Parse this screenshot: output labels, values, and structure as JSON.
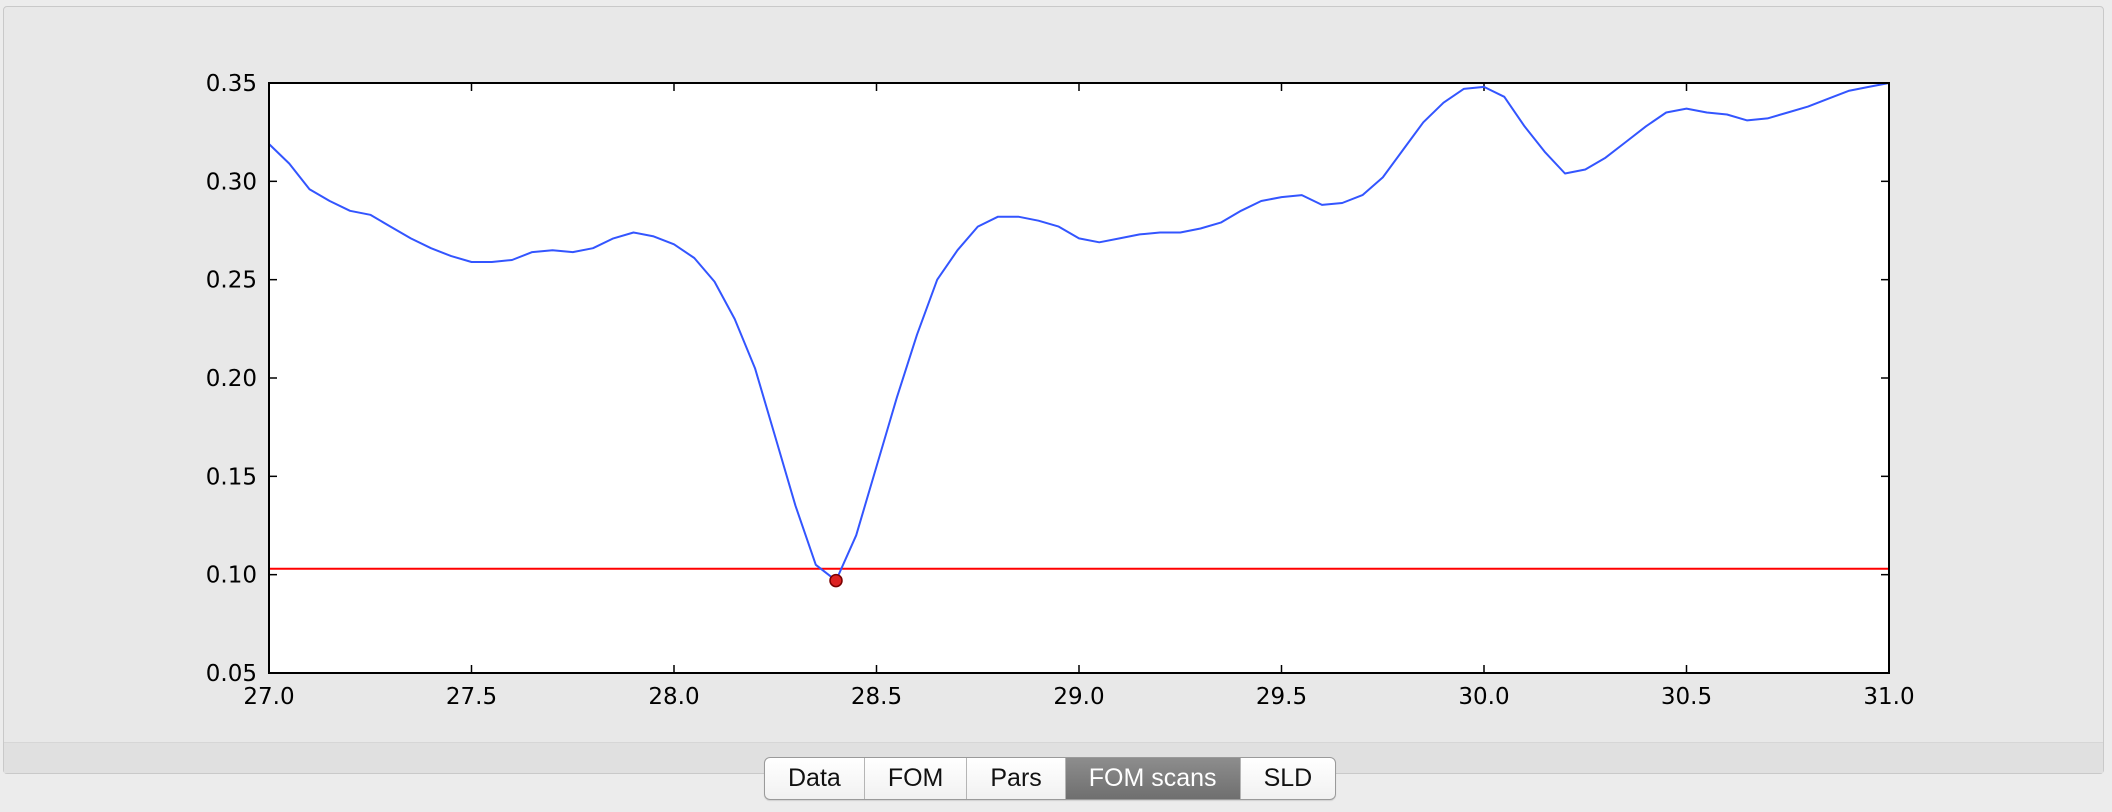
{
  "tabs": [
    {
      "label": "Data",
      "selected": false
    },
    {
      "label": "FOM",
      "selected": false
    },
    {
      "label": "Pars",
      "selected": false
    },
    {
      "label": "FOM scans",
      "selected": true
    },
    {
      "label": "SLD",
      "selected": false
    }
  ],
  "chart_data": {
    "type": "line",
    "title": "",
    "xlabel": "",
    "ylabel": "",
    "xlim": [
      27.0,
      31.0
    ],
    "ylim": [
      0.05,
      0.35
    ],
    "xticks": [
      "27.0",
      "27.5",
      "28.0",
      "28.5",
      "29.0",
      "29.5",
      "30.0",
      "30.5",
      "31.0"
    ],
    "yticks": [
      "0.05",
      "0.10",
      "0.15",
      "0.20",
      "0.25",
      "0.30",
      "0.35"
    ],
    "grid": false,
    "series": [
      {
        "color": "#3355ff",
        "x": [
          27.0,
          27.05,
          27.1,
          27.15,
          27.2,
          27.25,
          27.3,
          27.35,
          27.4,
          27.45,
          27.5,
          27.55,
          27.6,
          27.65,
          27.7,
          27.75,
          27.8,
          27.85,
          27.9,
          27.95,
          28.0,
          28.05,
          28.1,
          28.15,
          28.2,
          28.25,
          28.3,
          28.35,
          28.4,
          28.45,
          28.5,
          28.55,
          28.6,
          28.65,
          28.7,
          28.75,
          28.8,
          28.85,
          28.9,
          28.95,
          29.0,
          29.05,
          29.1,
          29.15,
          29.2,
          29.25,
          29.3,
          29.35,
          29.4,
          29.45,
          29.5,
          29.55,
          29.6,
          29.65,
          29.7,
          29.75,
          29.8,
          29.85,
          29.9,
          29.95,
          30.0,
          30.05,
          30.1,
          30.15,
          30.2,
          30.25,
          30.3,
          30.35,
          30.4,
          30.45,
          30.5,
          30.55,
          30.6,
          30.65,
          30.7,
          30.75,
          30.8,
          30.85,
          30.9,
          30.95,
          31.0
        ],
        "y": [
          0.319,
          0.309,
          0.296,
          0.29,
          0.285,
          0.283,
          0.277,
          0.271,
          0.266,
          0.262,
          0.259,
          0.259,
          0.26,
          0.264,
          0.265,
          0.264,
          0.266,
          0.271,
          0.274,
          0.272,
          0.268,
          0.261,
          0.249,
          0.23,
          0.205,
          0.17,
          0.135,
          0.105,
          0.097,
          0.12,
          0.155,
          0.19,
          0.222,
          0.25,
          0.265,
          0.277,
          0.282,
          0.282,
          0.28,
          0.277,
          0.271,
          0.269,
          0.271,
          0.273,
          0.274,
          0.274,
          0.276,
          0.279,
          0.285,
          0.29,
          0.292,
          0.293,
          0.288,
          0.289,
          0.293,
          0.302,
          0.316,
          0.33,
          0.34,
          0.347,
          0.348,
          0.343,
          0.328,
          0.315,
          0.304,
          0.306,
          0.312,
          0.32,
          0.328,
          0.335,
          0.337,
          0.335,
          0.334,
          0.331,
          0.332,
          0.335,
          0.338,
          0.342,
          0.346,
          0.348,
          0.35
        ]
      }
    ],
    "threshold_line": {
      "y": 0.103,
      "color": "#ff0000"
    },
    "marker": {
      "x": 28.4,
      "y": 0.097,
      "color": "#dd2222"
    }
  }
}
